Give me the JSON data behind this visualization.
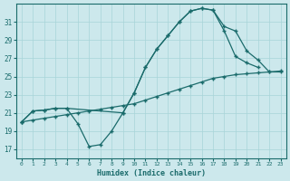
{
  "xlabel": "Humidex (Indice chaleur)",
  "bg_color": "#cce8ec",
  "grid_color": "#a8d4d8",
  "line_color": "#1a6b6b",
  "xlim": [
    -0.5,
    23.5
  ],
  "ylim": [
    16.0,
    33.0
  ],
  "yticks": [
    17,
    19,
    21,
    23,
    25,
    27,
    29,
    31
  ],
  "xticks": [
    0,
    1,
    2,
    3,
    4,
    5,
    6,
    7,
    8,
    9,
    10,
    11,
    12,
    13,
    14,
    15,
    16,
    17,
    18,
    19,
    20,
    21,
    22,
    23
  ],
  "line1_x": [
    0,
    1,
    2,
    3,
    4,
    5,
    6,
    7,
    8,
    9,
    10,
    11,
    12,
    13,
    14,
    15,
    16,
    17,
    18,
    19,
    20,
    21
  ],
  "line1_y": [
    20,
    21.2,
    21.3,
    21.5,
    21.5,
    19.8,
    17.3,
    17.5,
    19.0,
    21.0,
    23.2,
    26.0,
    28.0,
    29.5,
    31.0,
    32.2,
    32.5,
    32.3,
    30.0,
    27.2,
    26.5,
    26.0
  ],
  "line2_x": [
    0,
    1,
    2,
    3,
    4,
    9,
    10,
    11,
    12,
    13,
    14,
    15,
    16,
    17,
    18,
    19,
    20,
    21,
    22,
    23
  ],
  "line2_y": [
    20,
    21.2,
    21.3,
    21.5,
    21.5,
    21.0,
    23.2,
    26.0,
    28.0,
    29.5,
    31.0,
    32.2,
    32.5,
    32.3,
    30.5,
    30.0,
    27.8,
    26.8,
    25.5,
    25.5
  ],
  "line3_x": [
    0,
    1,
    2,
    3,
    4,
    5,
    6,
    7,
    8,
    9,
    10,
    11,
    12,
    13,
    14,
    15,
    16,
    17,
    18,
    19,
    20,
    21,
    22,
    23
  ],
  "line3_y": [
    20,
    20.2,
    20.4,
    20.6,
    20.8,
    21.0,
    21.2,
    21.4,
    21.6,
    21.8,
    22.0,
    22.4,
    22.8,
    23.2,
    23.6,
    24.0,
    24.4,
    24.8,
    25.0,
    25.2,
    25.3,
    25.4,
    25.5,
    25.6
  ]
}
